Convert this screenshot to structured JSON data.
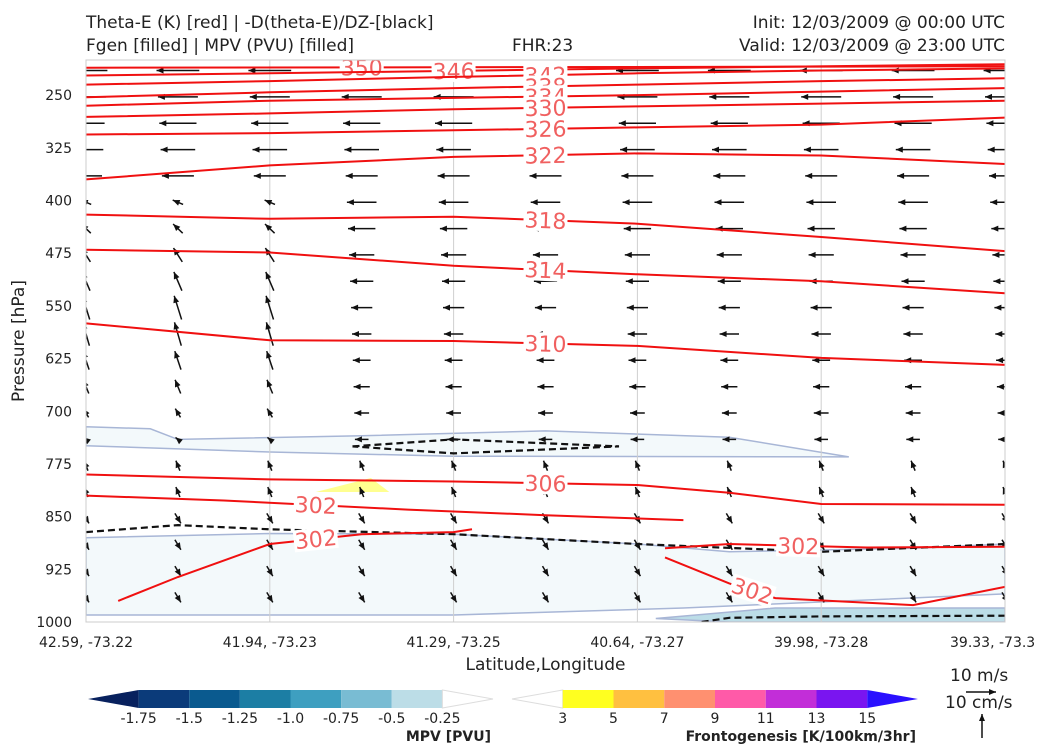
{
  "header": {
    "title_line1": "Theta-E (K) [red] | -D(theta-E)/DZ-[black]",
    "title_line2": "Fgen [filled] | MPV (PVU) [filled]",
    "fhr": "FHR:23",
    "init": "Init: 12/03/2009 @ 00:00 UTC",
    "valid": "Valid: 12/03/2009 @ 23:00 UTC"
  },
  "legend": {
    "wind_label": "10 m/s",
    "vertical_label": "10 cm/s"
  },
  "chart_data": {
    "type": "cross-section",
    "xlabel": "Latitude,Longitude",
    "ylabel": "Pressure [hPa]",
    "x_ticks": [
      "42.59, -73.22",
      "41.94, -73.23",
      "41.29, -73.25",
      "40.64, -73.27",
      "39.98, -73.28",
      "39.33, -73.3"
    ],
    "y_ticks": [
      250,
      325,
      400,
      475,
      550,
      625,
      700,
      775,
      850,
      925,
      1000
    ],
    "ylim": [
      1000,
      200
    ],
    "grid": true,
    "theta_e_contours": [
      {
        "value": 350,
        "label": "350",
        "points": [
          [
            0,
            211
          ],
          [
            60,
            210
          ],
          [
            100,
            209
          ]
        ]
      },
      {
        "value": 346,
        "label": "346",
        "points": [
          [
            0,
            222
          ],
          [
            20,
            219
          ],
          [
            60,
            212
          ],
          [
            100,
            206
          ]
        ]
      },
      {
        "value": 342,
        "label": "342",
        "points": [
          [
            0,
            235
          ],
          [
            20,
            230
          ],
          [
            40,
            224
          ],
          [
            60,
            219
          ],
          [
            80,
            215
          ],
          [
            100,
            212
          ]
        ]
      },
      {
        "value": 338,
        "label": "338",
        "points": [
          [
            0,
            253
          ],
          [
            20,
            246
          ],
          [
            40,
            240
          ],
          [
            60,
            235
          ],
          [
            80,
            230
          ],
          [
            100,
            226
          ]
        ]
      },
      {
        "value": 334,
        "label": "334",
        "points": [
          [
            0,
            265
          ],
          [
            20,
            258
          ],
          [
            40,
            254
          ],
          [
            60,
            250
          ],
          [
            80,
            245
          ],
          [
            100,
            240
          ]
        ]
      },
      {
        "value": 330,
        "label": "330",
        "points": [
          [
            0,
            281
          ],
          [
            20,
            276
          ],
          [
            40,
            270
          ],
          [
            60,
            266
          ],
          [
            80,
            262
          ],
          [
            100,
            258
          ]
        ]
      },
      {
        "value": 326,
        "label": "326",
        "points": [
          [
            0,
            306
          ],
          [
            20,
            304
          ],
          [
            40,
            300
          ],
          [
            60,
            296
          ],
          [
            80,
            292
          ],
          [
            100,
            282
          ]
        ]
      },
      {
        "value": 322,
        "label": "322",
        "points": [
          [
            0,
            370
          ],
          [
            20,
            350
          ],
          [
            40,
            338
          ],
          [
            60,
            333
          ],
          [
            80,
            336
          ],
          [
            100,
            348
          ]
        ]
      },
      {
        "value": 318,
        "label": "318",
        "points": [
          [
            0,
            420
          ],
          [
            20,
            426
          ],
          [
            40,
            423
          ],
          [
            60,
            433
          ],
          [
            80,
            452
          ],
          [
            100,
            472
          ]
        ]
      },
      {
        "value": 314,
        "label": "314",
        "points": [
          [
            0,
            470
          ],
          [
            20,
            474
          ],
          [
            40,
            493
          ],
          [
            60,
            505
          ],
          [
            80,
            515
          ],
          [
            100,
            532
          ]
        ]
      },
      {
        "value": 310,
        "label": "310",
        "points": [
          [
            0,
            575
          ],
          [
            20,
            599
          ],
          [
            40,
            600
          ],
          [
            60,
            607
          ],
          [
            80,
            624
          ],
          [
            100,
            634
          ]
        ]
      },
      {
        "value": 306,
        "label": "306",
        "points": [
          [
            0,
            790
          ],
          [
            20,
            797
          ],
          [
            40,
            800
          ],
          [
            60,
            805
          ],
          [
            70,
            816
          ],
          [
            80,
            832
          ],
          [
            100,
            833
          ]
        ]
      },
      {
        "value": 302,
        "label": "302",
        "points": [
          [
            0,
            820
          ],
          [
            15,
            827
          ],
          [
            35,
            840
          ],
          [
            50,
            848
          ],
          [
            65,
            855
          ]
        ]
      },
      {
        "value": 302,
        "label": "302",
        "points": [
          [
            3.5,
            970
          ],
          [
            10,
            936
          ],
          [
            20,
            889
          ],
          [
            30,
            875
          ],
          [
            40,
            872
          ],
          [
            42,
            868
          ]
        ]
      },
      {
        "value": 302,
        "label": "302",
        "points": [
          [
            63,
            895
          ],
          [
            70,
            889
          ],
          [
            85,
            894
          ],
          [
            100,
            893
          ]
        ]
      },
      {
        "value": 302,
        "label": "302",
        "points": [
          [
            63,
            908
          ],
          [
            70,
            945
          ],
          [
            75,
            966
          ],
          [
            90,
            976
          ],
          [
            100,
            950
          ]
        ]
      }
    ],
    "stability_contours": [
      {
        "style": "dashed",
        "points": [
          [
            0,
            872
          ],
          [
            10,
            862
          ],
          [
            20,
            868
          ],
          [
            40,
            875
          ],
          [
            60,
            889
          ],
          [
            80,
            900
          ],
          [
            100,
            889
          ]
        ]
      },
      {
        "style": "dashed",
        "points": [
          [
            29,
            750
          ],
          [
            40,
            740
          ],
          [
            58,
            750
          ],
          [
            40,
            760
          ],
          [
            29,
            750
          ]
        ]
      },
      {
        "style": "dashed",
        "points": [
          [
            67,
            1000
          ],
          [
            70,
            994
          ],
          [
            80,
            992
          ],
          [
            100,
            991
          ]
        ]
      }
    ],
    "mpv_filled": {
      "title": "MPV [PVU]",
      "levels": [
        -1.75,
        -1.5,
        -1.25,
        -1.0,
        -0.75,
        -0.5,
        -0.25
      ],
      "tick_labels": [
        "-1.75",
        "-1.5",
        "-1.25",
        "-1.0",
        "-0.75",
        "-0.5",
        "-0.25"
      ],
      "colors": [
        "#08215e",
        "#0b3b7a",
        "#0a5a8f",
        "#1c7ea4",
        "#3e9fc0",
        "#79bcd3",
        "#bcdde7",
        "#ffffff"
      ],
      "regions": [
        {
          "level": -0.25,
          "points": [
            [
              0,
              722
            ],
            [
              7,
              725
            ],
            [
              10,
              740
            ],
            [
              30,
              735
            ],
            [
              50,
              728
            ],
            [
              70,
              737
            ],
            [
              83,
              765
            ],
            [
              40,
              764
            ],
            [
              20,
              758
            ],
            [
              0,
              749
            ]
          ]
        },
        {
          "level": -0.25,
          "points": [
            [
              0,
              880
            ],
            [
              20,
              874
            ],
            [
              40,
              875
            ],
            [
              60,
              889
            ],
            [
              70,
              900
            ],
            [
              90,
              895
            ],
            [
              100,
              889
            ],
            [
              100,
              960
            ],
            [
              65,
              980
            ],
            [
              40,
              990
            ],
            [
              0,
              990
            ]
          ]
        },
        {
          "level": -0.75,
          "points": [
            [
              62,
              995
            ],
            [
              75,
              980
            ],
            [
              100,
              980
            ],
            [
              100,
              1000
            ],
            [
              70,
              1000
            ]
          ]
        }
      ]
    },
    "fgen_filled": {
      "title": "Frontogenesis [K/100km/3hr]",
      "levels": [
        3,
        5,
        7,
        9,
        11,
        13,
        15
      ],
      "tick_labels": [
        "3",
        "5",
        "7",
        "9",
        "11",
        "13",
        "15"
      ],
      "colors": [
        "#ffffff",
        "#ffff20",
        "#ffc040",
        "#ff9070",
        "#ff5aa8",
        "#c22ed8",
        "#7a15f0",
        "#2a10ff"
      ],
      "regions": [
        {
          "level": 3,
          "points": [
            [
              25,
              815
            ],
            [
              31,
              795
            ],
            [
              33,
              815
            ]
          ]
        }
      ]
    }
  }
}
